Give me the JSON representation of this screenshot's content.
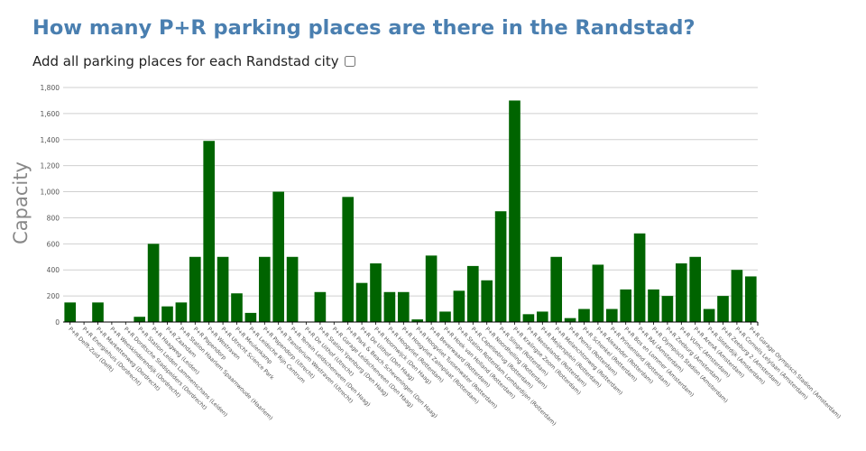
{
  "page": {
    "title": "How many P+R parking places are there in the Randstad?",
    "toggle_label": "Add all parking places for each Randstad city",
    "toggle_checked": false
  },
  "colors": {
    "title": "#4a7fb0",
    "bar": "#006400",
    "grid": "#cfcfcf",
    "axis": "#000000"
  },
  "chart_data": {
    "type": "bar",
    "ylabel": "Capacity",
    "xlabel": "",
    "ylim": [
      0,
      1800
    ],
    "yticks": [
      0,
      200,
      400,
      600,
      800,
      1000,
      1200,
      1400,
      1600,
      1800
    ],
    "ytick_labels": [
      "0",
      "200",
      "400",
      "600",
      "800",
      "1,000",
      "1,200",
      "1,400",
      "1,600",
      "1,800"
    ],
    "grid": true,
    "categories": [
      "P+R Delft-Zuid (Delft)",
      "P+R Energiehuis (Dordrecht)",
      "P+R Markettenweg (Dordrecht)",
      "P+R Weeskinderendijk (Dordrecht)",
      "P+R Dordtsche Stadspolders (Dordrecht)",
      "P+R Station Leiden Lammenschans (Leiden)",
      "P+R Haagweg (Leiden)",
      "P+R Zaandam",
      "P+R Station Haarlem Spaarnwoude (Haarlem)",
      "P+R Papendorp",
      "P+R Westraven",
      "P+R Utrecht Science Park",
      "P+R Meulenkamp",
      "P+R Leidsche Rijn Centrum",
      "P+R Papendorp (Utrecht)",
      "P+R Transferium Westraven (Utrecht)",
      "P+R Terrein Leidschenveen (Den Haag)",
      "P+R De Uithof (Utrecht)",
      "P+R Station Ypenburg (Den Haag)",
      "P+R Garage Leidschenveen (Den Haag)",
      "P+R Park & Beach Scheveningen (Den Haag)",
      "P+R De Uithof (Den Haag)",
      "P+R Hoornwijck (Den Haag)",
      "P+R Hoogvliet (Rotterdam)",
      "P+R Hoogvliet Zalmplaat (Rotterdam)",
      "P+R Hoogvliet Tussenwater (Rotterdam)",
      "P+R Beverwaard (Rotterdam)",
      "P+R Hoek van Holland (Rotterdam)",
      "P+R Station Rotterdam Lombardijen (Rotterdam)",
      "P+R Capelsebrug (Rotterdam)",
      "P+R Noordhelling (Rotterdam)",
      "P+R Slinge (Rotterdam)",
      "P+R Kralingse Zoom (Rotterdam)",
      "P+R Nesselande (Rotterdam)",
      "P+R Meijersplein (Rotterdam)",
      "P+R Melanchtonweg (Rotterdam)",
      "P+R Pernis (Rotterdam)",
      "P+R Schenkel (Rotterdam)",
      "P+R Alexander (Rotterdam)",
      "P+R Prinsenland (Rotterdam)",
      "P+R Bos en Lommer (Amsterdam)",
      "P+R RAI (Amsterdam)",
      "P+R Olympisch Stadion (Amsterdam)",
      "P+R Zeeburg (Amsterdam)",
      "P+R VUmc (Amsterdam)",
      "P+R ArenA (Amsterdam)",
      "P+R Sloterdijk (Amsterdam)",
      "P+R Zeeburg 2 (Amsterdam)",
      "P+R Cornelis Lelylaan (Amsterdam)",
      "P+R Garage Olympisch Stadion (Amsterdam)"
    ],
    "values": [
      150,
      0,
      150,
      0,
      0,
      40,
      600,
      120,
      150,
      500,
      1390,
      500,
      220,
      70,
      500,
      1000,
      500,
      0,
      230,
      0,
      960,
      300,
      450,
      230,
      230,
      20,
      510,
      80,
      240,
      430,
      320,
      850,
      1700,
      60,
      80,
      500,
      30,
      100,
      440,
      100,
      250,
      680,
      250,
      200,
      450,
      500,
      100,
      200,
      400,
      350
    ]
  }
}
